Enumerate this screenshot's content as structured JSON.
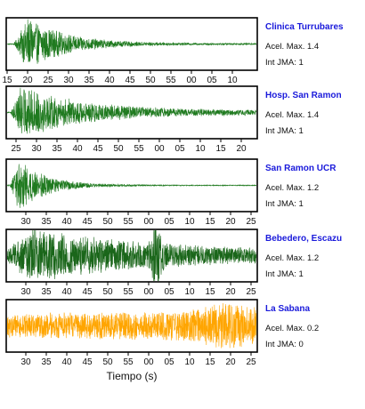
{
  "chart_data": {
    "type": "line",
    "xlabel": "Tiempo (s)",
    "panels": [
      {
        "station": "Clinica Turrubares",
        "acel_label": "Acel. Max. 1.4",
        "int_label": "Int JMA: 1",
        "color": "#1f7a1f",
        "tick_labels": [
          "15",
          "20",
          "25",
          "30",
          "35",
          "40",
          "45",
          "50",
          "55",
          "00",
          "05",
          "10"
        ],
        "waveform": {
          "onset": 0.03,
          "peak_at": 0.085,
          "peak_amplitude": 0.95,
          "decay": 6.5,
          "noise": 0.03,
          "secondary": null
        }
      },
      {
        "station": "Hosp. San Ramon",
        "acel_label": "Acel. Max. 1.4",
        "int_label": "Int JMA: 1",
        "color": "#1f7a1f",
        "tick_labels": [
          "25",
          "30",
          "35",
          "40",
          "45",
          "50",
          "55",
          "00",
          "05",
          "10",
          "15",
          "20"
        ],
        "waveform": {
          "onset": 0.02,
          "peak_at": 0.06,
          "peak_amplitude": 0.9,
          "decay": 4.0,
          "noise": 0.08,
          "secondary": null
        }
      },
      {
        "station": "San Ramon UCR",
        "acel_label": "Acel. Max. 1.2",
        "int_label": "Int JMA: 1",
        "color": "#1f7a1f",
        "tick_labels": [
          "30",
          "35",
          "40",
          "45",
          "50",
          "55",
          "00",
          "05",
          "10",
          "15",
          "20",
          "25"
        ],
        "waveform": {
          "onset": 0.015,
          "peak_at": 0.05,
          "peak_amplitude": 0.95,
          "decay": 9.0,
          "noise": 0.015,
          "secondary": null
        }
      },
      {
        "station": "Bebedero, Escazu",
        "acel_label": "Acel. Max. 1.2",
        "int_label": "Int JMA: 1",
        "color": "#1a661a",
        "tick_labels": [
          "30",
          "35",
          "40",
          "45",
          "50",
          "55",
          "00",
          "05",
          "10",
          "15",
          "20",
          "25"
        ],
        "waveform": {
          "onset": 0.0,
          "peak_at": 0.1,
          "peak_amplitude": 0.85,
          "decay": 2.2,
          "noise": 0.18,
          "secondary": {
            "at": 0.6,
            "amplitude": 0.9,
            "width": 0.02
          }
        }
      },
      {
        "station": "La Sabana",
        "acel_label": "Acel. Max. 0.2",
        "int_label": "Int JMA: 0",
        "color": "#ffa500",
        "tick_labels": [
          "30",
          "35",
          "40",
          "45",
          "50",
          "55",
          "00",
          "05",
          "10",
          "15",
          "20",
          "25"
        ],
        "waveform": {
          "onset": 0.0,
          "peak_at": 0.88,
          "peak_amplitude": 0.75,
          "decay": 0.0,
          "noise": 0.45,
          "secondary": null,
          "growth": true
        }
      }
    ]
  }
}
